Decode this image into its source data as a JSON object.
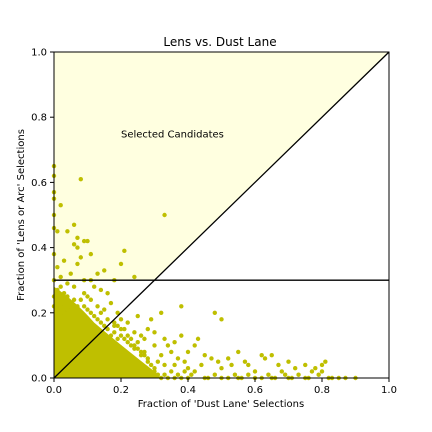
{
  "chart_data": {
    "type": "scatter",
    "title": "Lens vs. Dust Lane",
    "xlabel": "Fraction of 'Dust Lane' Selections",
    "ylabel": "Fraction of 'Lens or Arc' Selections",
    "xlim": [
      0.0,
      1.0
    ],
    "ylim": [
      0.0,
      1.0
    ],
    "xticks": [
      0.0,
      0.2,
      0.4,
      0.6,
      0.8,
      1.0
    ],
    "yticks": [
      0.0,
      0.2,
      0.4,
      0.6,
      0.8,
      1.0
    ],
    "xtick_labels": [
      "0.0",
      "0.2",
      "0.4",
      "0.6",
      "0.8",
      "1.0"
    ],
    "ytick_labels": [
      "0.0",
      "0.2",
      "0.4",
      "0.6",
      "0.8",
      "1.0"
    ],
    "grid": false,
    "annotation": {
      "text": "Selected Candidates",
      "x": 0.2,
      "y": 0.75
    },
    "selection_region": {
      "description_y_threshold": 0.3,
      "color": "#ffffe0"
    },
    "reference_lines": {
      "diagonal": {
        "x": [
          0.0,
          1.0
        ],
        "y": [
          0.0,
          1.0
        ]
      },
      "horizontal_y": 0.3
    },
    "marker_color": "#bfbf00",
    "series": [
      {
        "points": [
          [
            0.0,
            0.65
          ],
          [
            0.0,
            0.62
          ],
          [
            0.0,
            0.57
          ],
          [
            0.0,
            0.55
          ],
          [
            0.0,
            0.5
          ],
          [
            0.02,
            0.53
          ],
          [
            0.08,
            0.61
          ],
          [
            0.33,
            0.5
          ],
          [
            0.0,
            0.46
          ],
          [
            0.01,
            0.45
          ],
          [
            0.04,
            0.45
          ],
          [
            0.06,
            0.47
          ],
          [
            0.07,
            0.43
          ],
          [
            0.09,
            0.42
          ],
          [
            0.1,
            0.42
          ],
          [
            0.06,
            0.41
          ],
          [
            0.07,
            0.4
          ],
          [
            0.11,
            0.38
          ],
          [
            0.21,
            0.39
          ],
          [
            0.0,
            0.38
          ],
          [
            0.08,
            0.37
          ],
          [
            0.03,
            0.36
          ],
          [
            0.07,
            0.35
          ],
          [
            0.15,
            0.33
          ],
          [
            0.13,
            0.32
          ],
          [
            0.2,
            0.35
          ],
          [
            0.24,
            0.31
          ],
          [
            0.18,
            0.3
          ],
          [
            0.01,
            0.34
          ],
          [
            0.05,
            0.32
          ],
          [
            0.09,
            0.3
          ],
          [
            0.11,
            0.3
          ],
          [
            0.02,
            0.31
          ],
          [
            0.04,
            0.29
          ],
          [
            0.06,
            0.28
          ],
          [
            0.12,
            0.28
          ],
          [
            0.14,
            0.27
          ],
          [
            0.16,
            0.26
          ],
          [
            0.1,
            0.25
          ],
          [
            0.08,
            0.24
          ],
          [
            0.03,
            0.26
          ],
          [
            0.01,
            0.27
          ],
          [
            0.17,
            0.23
          ],
          [
            0.19,
            0.2
          ],
          [
            0.15,
            0.21
          ],
          [
            0.2,
            0.18
          ],
          [
            0.22,
            0.17
          ],
          [
            0.18,
            0.16
          ],
          [
            0.21,
            0.15
          ],
          [
            0.24,
            0.14
          ],
          [
            0.26,
            0.13
          ],
          [
            0.28,
            0.15
          ],
          [
            0.25,
            0.11
          ],
          [
            0.27,
            0.12
          ],
          [
            0.3,
            0.1
          ],
          [
            0.29,
            0.18
          ],
          [
            0.32,
            0.2
          ],
          [
            0.25,
            0.19
          ],
          [
            0.3,
            0.14
          ],
          [
            0.33,
            0.12
          ],
          [
            0.34,
            0.1
          ],
          [
            0.36,
            0.11
          ],
          [
            0.38,
            0.13
          ],
          [
            0.35,
            0.08
          ],
          [
            0.32,
            0.07
          ],
          [
            0.37,
            0.06
          ],
          [
            0.4,
            0.08
          ],
          [
            0.38,
            0.22
          ],
          [
            0.42,
            0.1
          ],
          [
            0.39,
            0.05
          ],
          [
            0.43,
            0.12
          ],
          [
            0.45,
            0.07
          ],
          [
            0.44,
            0.04
          ],
          [
            0.47,
            0.06
          ],
          [
            0.48,
            0.2
          ],
          [
            0.5,
            0.18
          ],
          [
            0.49,
            0.05
          ],
          [
            0.5,
            0.03
          ],
          [
            0.52,
            0.06
          ],
          [
            0.53,
            0.04
          ],
          [
            0.55,
            0.08
          ],
          [
            0.57,
            0.05
          ],
          [
            0.58,
            0.04
          ],
          [
            0.6,
            0.02
          ],
          [
            0.62,
            0.07
          ],
          [
            0.63,
            0.06
          ],
          [
            0.65,
            0.07
          ],
          [
            0.67,
            0.04
          ],
          [
            0.7,
            0.05
          ],
          [
            0.68,
            0.02
          ],
          [
            0.72,
            0.03
          ],
          [
            0.75,
            0.04
          ],
          [
            0.77,
            0.02
          ],
          [
            0.78,
            0.03
          ],
          [
            0.8,
            0.04
          ],
          [
            0.81,
            0.05
          ],
          [
            0.8,
            0.02
          ],
          [
            0.82,
            0.0
          ],
          [
            0.85,
            0.0
          ],
          [
            0.87,
            0.0
          ],
          [
            0.9,
            0.0
          ],
          [
            0.75,
            0.0
          ],
          [
            0.7,
            0.0
          ],
          [
            0.65,
            0.0
          ],
          [
            0.6,
            0.0
          ],
          [
            0.55,
            0.0
          ],
          [
            0.5,
            0.0
          ],
          [
            0.45,
            0.0
          ],
          [
            0.42,
            0.02
          ],
          [
            0.4,
            0.03
          ],
          [
            0.36,
            0.04
          ],
          [
            0.33,
            0.04
          ],
          [
            0.31,
            0.05
          ],
          [
            0.3,
            0.03
          ],
          [
            0.28,
            0.06
          ],
          [
            0.27,
            0.08
          ],
          [
            0.26,
            0.07
          ],
          [
            0.24,
            0.09
          ],
          [
            0.23,
            0.1
          ],
          [
            0.22,
            0.11
          ],
          [
            0.21,
            0.12
          ],
          [
            0.2,
            0.13
          ],
          [
            0.19,
            0.12
          ],
          [
            0.18,
            0.14
          ],
          [
            0.17,
            0.13
          ],
          [
            0.16,
            0.15
          ],
          [
            0.15,
            0.16
          ],
          [
            0.14,
            0.17
          ],
          [
            0.13,
            0.18
          ],
          [
            0.12,
            0.19
          ],
          [
            0.11,
            0.2
          ],
          [
            0.1,
            0.21
          ],
          [
            0.09,
            0.22
          ],
          [
            0.08,
            0.2
          ],
          [
            0.07,
            0.22
          ],
          [
            0.06,
            0.2
          ],
          [
            0.05,
            0.22
          ],
          [
            0.04,
            0.21
          ],
          [
            0.03,
            0.2
          ],
          [
            0.02,
            0.22
          ],
          [
            0.01,
            0.2
          ],
          [
            0.0,
            0.22
          ],
          [
            0.0,
            0.3
          ],
          [
            0.0,
            0.25
          ],
          [
            0.02,
            0.28
          ],
          [
            0.04,
            0.25
          ],
          [
            0.06,
            0.24
          ],
          [
            0.09,
            0.26
          ],
          [
            0.11,
            0.24
          ],
          [
            0.13,
            0.22
          ],
          [
            0.14,
            0.2
          ],
          [
            0.16,
            0.18
          ],
          [
            0.18,
            0.17
          ],
          [
            0.19,
            0.16
          ],
          [
            0.2,
            0.15
          ],
          [
            0.22,
            0.13
          ],
          [
            0.23,
            0.12
          ],
          [
            0.24,
            0.1
          ],
          [
            0.25,
            0.09
          ],
          [
            0.26,
            0.08
          ],
          [
            0.27,
            0.07
          ],
          [
            0.28,
            0.05
          ],
          [
            0.29,
            0.04
          ],
          [
            0.3,
            0.02
          ],
          [
            0.31,
            0.01
          ],
          [
            0.32,
            0.0
          ],
          [
            0.33,
            0.01
          ],
          [
            0.34,
            0.0
          ],
          [
            0.35,
            0.02
          ],
          [
            0.36,
            0.0
          ],
          [
            0.37,
            0.01
          ],
          [
            0.38,
            0.0
          ],
          [
            0.39,
            0.02
          ],
          [
            0.4,
            0.0
          ],
          [
            0.41,
            0.01
          ],
          [
            0.46,
            0.0
          ],
          [
            0.48,
            0.01
          ],
          [
            0.52,
            0.0
          ],
          [
            0.54,
            0.01
          ],
          [
            0.56,
            0.0
          ],
          [
            0.58,
            0.01
          ],
          [
            0.62,
            0.0
          ],
          [
            0.64,
            0.01
          ],
          [
            0.66,
            0.0
          ],
          [
            0.69,
            0.01
          ],
          [
            0.71,
            0.0
          ],
          [
            0.73,
            0.01
          ],
          [
            0.76,
            0.0
          ],
          [
            0.79,
            0.01
          ],
          [
            0.83,
            0.0
          ]
        ]
      }
    ]
  }
}
